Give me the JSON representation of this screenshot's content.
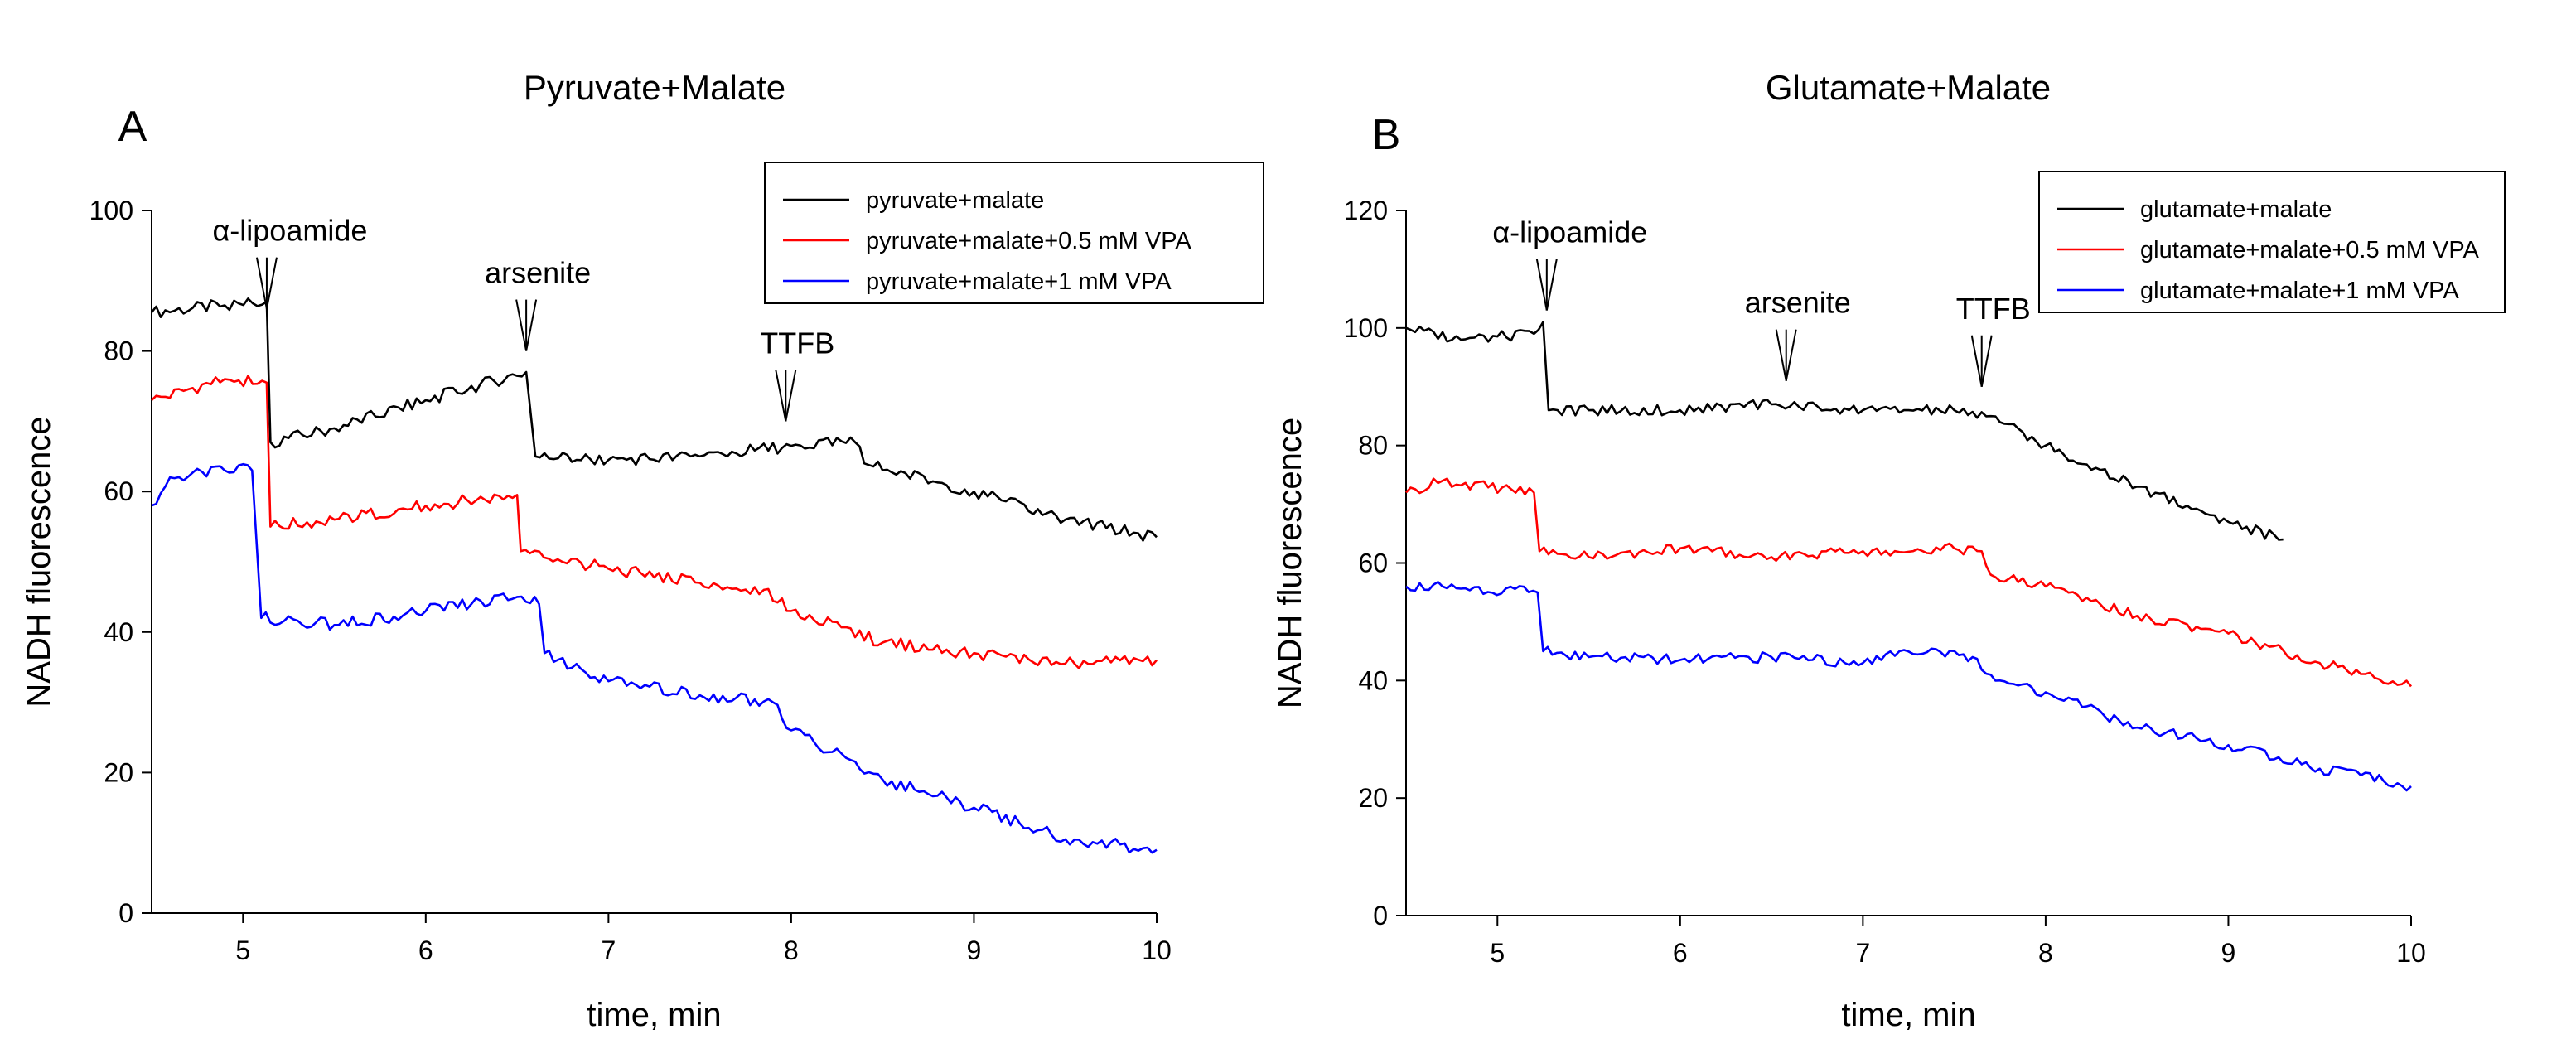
{
  "chart_data": [
    {
      "type": "line",
      "panel_label": "A",
      "title": "Pyruvate+Malate",
      "xlabel": "time, min",
      "ylabel": "NADH fluorescence",
      "xlim": [
        4.5,
        10
      ],
      "ylim": [
        0,
        100
      ],
      "xticks": [
        5,
        6,
        7,
        8,
        9,
        10
      ],
      "yticks": [
        0,
        20,
        40,
        60,
        80,
        100
      ],
      "grid": false,
      "legend_position": "top-right",
      "annotations": [
        {
          "text": "α-lipoamide",
          "x": 5.13,
          "y": 86
        },
        {
          "text": "arsenite",
          "x": 6.55,
          "y": 80
        },
        {
          "text": "TTFB",
          "x": 7.97,
          "y": 70
        }
      ],
      "series": [
        {
          "name": "pyruvate+malate",
          "color": "#000000",
          "x": [
            4.5,
            4.9,
            5.13,
            5.15,
            5.5,
            6.0,
            6.55,
            6.6,
            7.0,
            7.5,
            8.0,
            8.35,
            8.4,
            9.0,
            9.5,
            10.0
          ],
          "y": [
            85.5,
            86.5,
            87,
            67,
            69,
            73,
            77,
            65,
            64.5,
            65,
            66.5,
            67,
            64,
            60,
            56,
            53.5
          ]
        },
        {
          "name": "pyruvate+malate+0.5 mM VPA",
          "color": "#ff0000",
          "x": [
            4.5,
            4.9,
            5.13,
            5.15,
            5.5,
            6.0,
            6.5,
            6.52,
            7.0,
            7.5,
            7.85,
            8.0,
            8.5,
            9.0,
            9.5,
            10.0
          ],
          "y": [
            73,
            76,
            75.5,
            55,
            56,
            58,
            59.5,
            51.5,
            49,
            47,
            46,
            43,
            38.5,
            37,
            35.5,
            36
          ]
        },
        {
          "name": "pyruvate+malate+1 mM VPA",
          "color": "#0000ff",
          "x": [
            4.5,
            4.6,
            4.9,
            5.05,
            5.1,
            5.5,
            6.0,
            6.5,
            6.62,
            6.65,
            7.0,
            7.5,
            7.9,
            8.0,
            8.5,
            9.0,
            9.5,
            10.0
          ],
          "y": [
            58,
            62,
            63,
            63,
            42,
            41,
            43,
            45,
            44,
            37,
            33,
            31,
            30,
            26,
            19,
            15,
            10.5,
            9
          ]
        }
      ]
    },
    {
      "type": "line",
      "panel_label": "B",
      "title": "Glutamate+Malate",
      "xlabel": "time, min",
      "ylabel": "NADH fluorescence",
      "xlim": [
        4.5,
        10
      ],
      "ylim": [
        0,
        120
      ],
      "xticks": [
        5,
        6,
        7,
        8,
        9,
        10
      ],
      "yticks": [
        0,
        20,
        40,
        60,
        80,
        100,
        120
      ],
      "grid": false,
      "legend_position": "top-right",
      "annotations": [
        {
          "text": "α-lipoamide",
          "x": 5.27,
          "y": 103
        },
        {
          "text": "arsenite",
          "x": 6.58,
          "y": 91
        },
        {
          "text": "TTFB",
          "x": 7.65,
          "y": 90
        }
      ],
      "series": [
        {
          "name": "glutamate+malate",
          "color": "#000000",
          "x": [
            4.5,
            4.8,
            5.2,
            5.25,
            5.28,
            5.5,
            6.0,
            6.5,
            7.0,
            7.5,
            7.7,
            8.0,
            8.5,
            9.0,
            9.3
          ],
          "y": [
            100,
            98,
            99,
            101,
            86,
            86,
            86,
            87,
            86,
            86,
            85,
            80,
            73,
            67,
            64
          ]
        },
        {
          "name": "glutamate+malate+0.5 mM VPA",
          "color": "#ff0000",
          "x": [
            4.5,
            4.7,
            5.2,
            5.23,
            5.5,
            6.0,
            6.5,
            7.0,
            7.5,
            7.65,
            7.7,
            8.0,
            8.5,
            9.0,
            9.5,
            10.0
          ],
          "y": [
            72,
            74,
            72,
            62,
            61,
            62.5,
            61,
            62,
            62.5,
            62,
            58,
            56,
            51,
            48,
            43,
            39
          ]
        },
        {
          "name": "glutamate+malate+1 mM VPA",
          "color": "#0000ff",
          "x": [
            4.5,
            4.7,
            5.22,
            5.25,
            5.5,
            6.0,
            6.5,
            7.0,
            7.2,
            7.6,
            7.75,
            8.0,
            8.5,
            9.0,
            9.5,
            10.0
          ],
          "y": [
            56,
            56,
            55,
            45,
            44,
            43.5,
            44,
            43,
            45,
            44,
            40,
            38,
            32,
            29,
            25,
            22
          ]
        }
      ]
    }
  ]
}
